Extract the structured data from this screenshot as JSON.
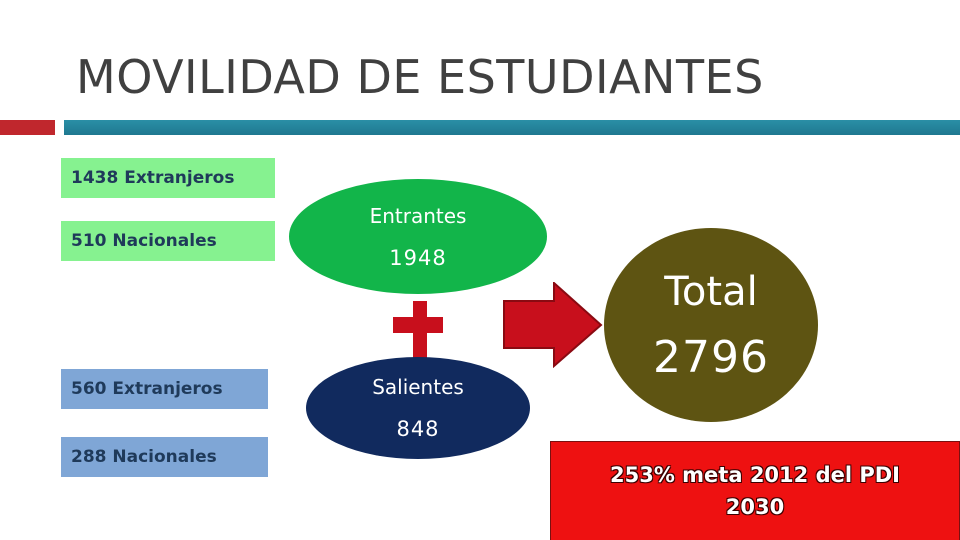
{
  "slide": {
    "title": "MOVILIDAD DE ESTUDIANTES"
  },
  "incoming": {
    "label": "Entrantes",
    "value": "1948",
    "color": "#12b54a",
    "breakdown": [
      {
        "text": "1438 Extranjeros"
      },
      {
        "text": "510 Nacionales"
      }
    ]
  },
  "outgoing": {
    "label": "Salientes",
    "value": "848",
    "color": "#112a5e",
    "breakdown": [
      {
        "text": "560 Extranjeros"
      },
      {
        "text": "288 Nacionales"
      }
    ]
  },
  "total": {
    "label": "Total",
    "value": "2796",
    "color": "#5e5412"
  },
  "goal": {
    "text": "253% meta 2012 del PDI 2030",
    "color": "#ee1111"
  },
  "icons": {
    "plus": "plus-icon",
    "arrow": "right-arrow-icon"
  },
  "colors": {
    "accent_red": "#c0272d",
    "accent_teal": "#1f7890",
    "plus_red": "#c80f1c"
  }
}
